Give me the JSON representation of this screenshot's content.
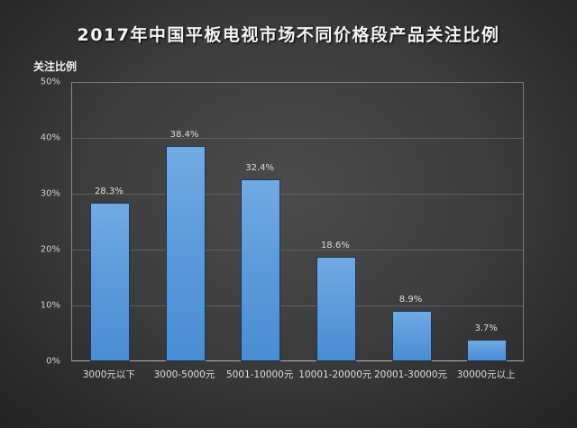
{
  "chart_data": {
    "type": "bar",
    "title": "2017年中国平板电视市场不同价格段产品关注比例",
    "xlabel": "",
    "ylabel": "关注比例",
    "categories": [
      "3000元以下",
      "3000-5000元",
      "5001-10000元",
      "10001-20000元",
      "20001-30000元",
      "30000元以上"
    ],
    "values": [
      28.3,
      38.4,
      32.4,
      18.6,
      8.9,
      3.7
    ],
    "value_labels": [
      "28.3%",
      "38.4%",
      "32.4%",
      "18.6%",
      "8.9%",
      "3.7%"
    ],
    "ylim": [
      0,
      50
    ],
    "yticks": [
      0,
      10,
      20,
      30,
      40,
      50
    ],
    "ytick_labels": [
      "0%",
      "10%",
      "20%",
      "30%",
      "40%",
      "50%"
    ],
    "grid": true,
    "legend": null,
    "colors": {
      "bar": "#5d9bdc",
      "bar_top": "#72aae3",
      "bar_bottom": "#4a8dd4",
      "background_center": "#4b4b4b",
      "background_edge": "#222222",
      "gridline": "#606060",
      "text": "#dedede"
    }
  }
}
